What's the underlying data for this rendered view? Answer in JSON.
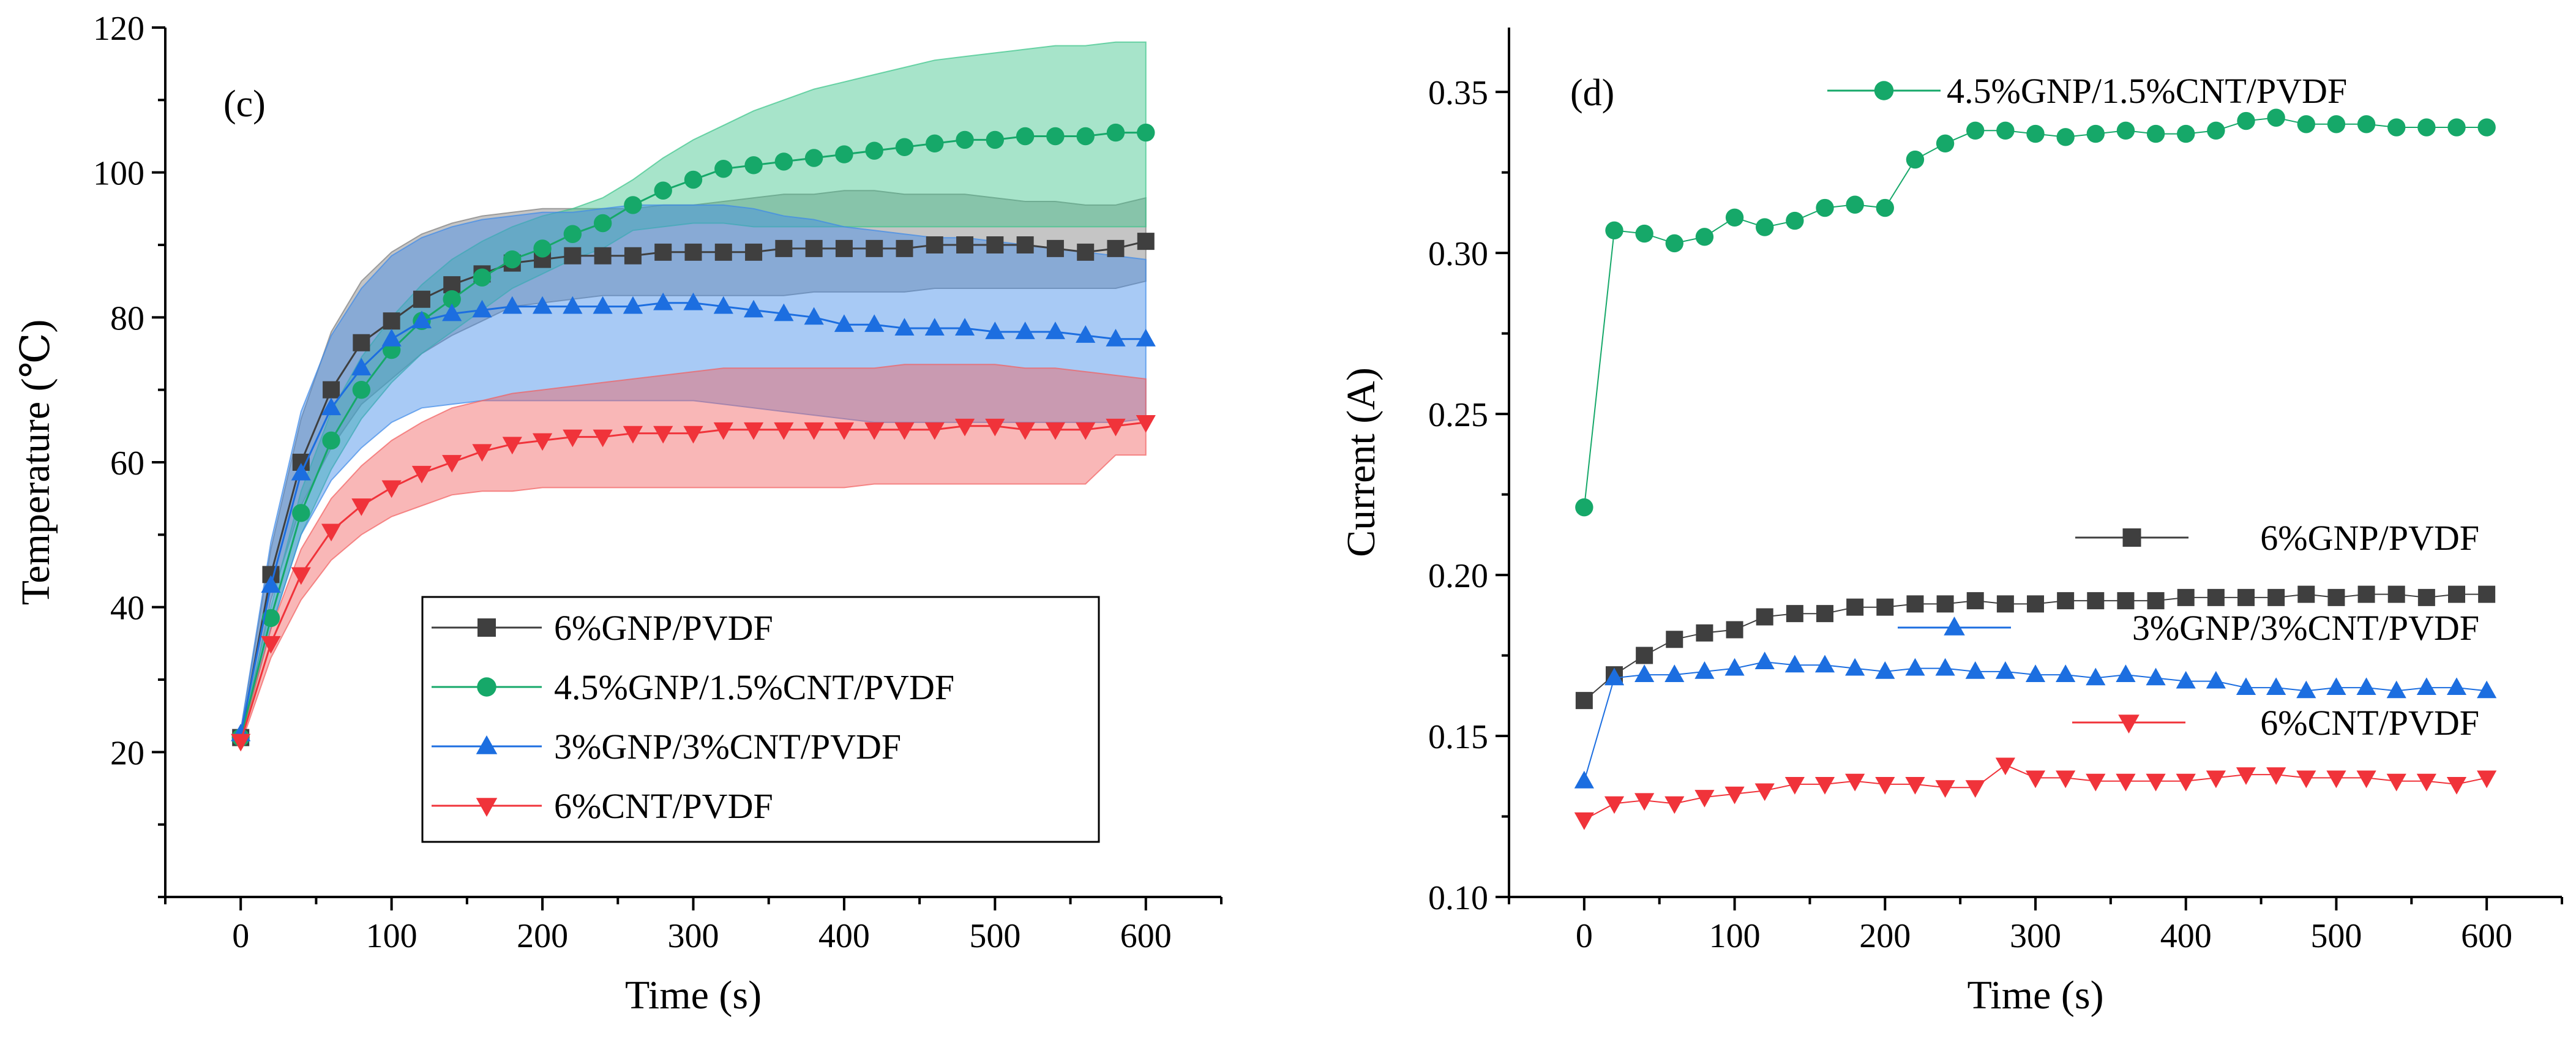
{
  "chart_data": [
    {
      "panel": "(c)",
      "type": "line",
      "xlabel": "Time (s)",
      "ylabel": "Temperature (℃)",
      "xlim": [
        -50,
        650
      ],
      "ylim": [
        0,
        120
      ],
      "xticks": [
        0,
        100,
        200,
        300,
        400,
        500,
        600
      ],
      "yticks": [
        20,
        40,
        60,
        80,
        100,
        120
      ],
      "legend_position": "bottom-center",
      "x": [
        0,
        20,
        40,
        60,
        80,
        100,
        120,
        140,
        160,
        180,
        200,
        220,
        240,
        260,
        280,
        300,
        320,
        340,
        360,
        380,
        400,
        420,
        440,
        460,
        480,
        500,
        520,
        540,
        560,
        580,
        600
      ],
      "series": [
        {
          "name": "6%GNP/PVDF",
          "color": "#3f3f3f",
          "band_color": "#7f7f7f",
          "marker": "square",
          "values": [
            22,
            44.5,
            60,
            70,
            76.5,
            79.5,
            82.5,
            84.5,
            86,
            87.5,
            88,
            88.5,
            88.5,
            88.5,
            89,
            89,
            89,
            89,
            89.5,
            89.5,
            89.5,
            89.5,
            89.5,
            90,
            90,
            90,
            90,
            89.5,
            89,
            89.5,
            90.5
          ],
          "band_upper": [
            23,
            48,
            66,
            78,
            85,
            89,
            91.5,
            93,
            94,
            94.5,
            95,
            95,
            95,
            95,
            95.5,
            95.5,
            96,
            96.5,
            97,
            97,
            97.5,
            97.5,
            97,
            97,
            97,
            96.5,
            96,
            96,
            95.5,
            95.5,
            96.5
          ],
          "band_lower": [
            21,
            41,
            54,
            62,
            68,
            71.5,
            75,
            77.5,
            79.5,
            81.5,
            82,
            82.5,
            83,
            83,
            83,
            83,
            83,
            83,
            83,
            83.5,
            83.5,
            83.5,
            83.5,
            84,
            84,
            84,
            84,
            84,
            84,
            84,
            85
          ]
        },
        {
          "name": "4.5%GNP/1.5%CNT/PVDF",
          "color": "#16a869",
          "band_color": "#3cc48a",
          "marker": "circle",
          "values": [
            22,
            38.5,
            53,
            63,
            70,
            75.5,
            79.5,
            82.5,
            85.5,
            88,
            89.5,
            91.5,
            93,
            95.5,
            97.5,
            99,
            100.5,
            101,
            101.5,
            102,
            102.5,
            103,
            103.5,
            104,
            104.5,
            104.5,
            105,
            105,
            105,
            105.5,
            105.5
          ],
          "band_upper": [
            22.5,
            40,
            56,
            67,
            74.5,
            80,
            84.5,
            88,
            90.5,
            92.5,
            94,
            95,
            96.5,
            99,
            102,
            104.5,
            106.5,
            108.5,
            110,
            111.5,
            112.5,
            113.5,
            114.5,
            115.5,
            116,
            116.5,
            117,
            117.5,
            117.5,
            118,
            118
          ],
          "band_lower": [
            21.5,
            37,
            50,
            59,
            66,
            71,
            75,
            78,
            81,
            84,
            86,
            88,
            89.5,
            92,
            92.5,
            93,
            93,
            92.5,
            92.5,
            92.5,
            92.5,
            92.5,
            92.5,
            92.5,
            92.5,
            92.5,
            92.5,
            92.5,
            92.5,
            92.5,
            92.5
          ]
        },
        {
          "name": "3%GNP/3%CNT/PVDF",
          "color": "#1c6ee0",
          "band_color": "#3f8ae8",
          "marker": "triangle-up",
          "values": [
            22.5,
            43,
            58.5,
            67.5,
            73,
            77,
            79.5,
            80.5,
            81,
            81.5,
            81.5,
            81.5,
            81.5,
            81.5,
            82,
            82,
            81.5,
            81,
            80.5,
            80,
            79,
            79,
            78.5,
            78.5,
            78.5,
            78,
            78,
            78,
            77.5,
            77,
            77
          ],
          "band_upper": [
            23,
            49,
            67,
            77.5,
            84,
            88.5,
            91,
            92.5,
            93.5,
            94,
            94.5,
            94.5,
            95,
            95.5,
            95.5,
            95.5,
            95.5,
            95,
            94,
            93.5,
            92.5,
            92,
            91.5,
            91,
            91,
            90.5,
            90,
            89.5,
            89,
            88.5,
            88
          ],
          "band_lower": [
            22,
            37,
            50,
            57.5,
            62,
            65.5,
            67.5,
            68,
            68.5,
            68.5,
            68.5,
            68.5,
            68.5,
            68.5,
            68.5,
            68.5,
            68,
            67.5,
            67,
            66.5,
            66,
            65.5,
            65.5,
            65.5,
            65.5,
            65.5,
            65.5,
            65.5,
            65.5,
            65.5,
            66
          ]
        },
        {
          "name": "6%CNT/PVDF",
          "color": "#f0333a",
          "band_color": "#f26060",
          "marker": "triangle-down",
          "values": [
            21.5,
            35,
            44.5,
            50.5,
            54,
            56.5,
            58.5,
            60,
            61.5,
            62.5,
            63,
            63.5,
            63.5,
            64,
            64,
            64,
            64.5,
            64.5,
            64.5,
            64.5,
            64.5,
            64.5,
            64.5,
            64.5,
            65,
            65,
            64.5,
            64.5,
            64.5,
            65,
            65.5
          ],
          "band_upper": [
            22,
            37,
            48,
            55,
            59.5,
            63,
            65.5,
            67.5,
            68.5,
            69.5,
            70,
            70.5,
            71,
            71.5,
            72,
            72.5,
            73,
            73,
            73,
            73,
            73,
            73,
            73.5,
            73.5,
            73.5,
            73.5,
            73,
            73,
            72.5,
            72,
            71.5
          ],
          "band_lower": [
            21,
            33,
            41,
            46.5,
            50,
            52.5,
            54,
            55.5,
            56,
            56,
            56.5,
            56.5,
            56.5,
            56.5,
            56.5,
            56.5,
            56.5,
            56.5,
            56.5,
            56.5,
            56.5,
            57,
            57,
            57,
            57,
            57,
            57,
            57,
            57,
            61,
            61
          ]
        }
      ]
    },
    {
      "panel": "(d)",
      "type": "line",
      "xlabel": "Time (s)",
      "ylabel": "Current (A)",
      "xlim": [
        -50,
        650
      ],
      "ylim": [
        0.1,
        0.37
      ],
      "xticks": [
        0,
        100,
        200,
        300,
        400,
        500,
        600
      ],
      "yticks": [
        0.1,
        0.15,
        0.2,
        0.25,
        0.3,
        0.35
      ],
      "legend_position": "inline",
      "x": [
        0,
        20,
        40,
        60,
        80,
        100,
        120,
        140,
        160,
        180,
        200,
        220,
        240,
        260,
        280,
        300,
        320,
        340,
        360,
        380,
        400,
        420,
        440,
        460,
        480,
        500,
        520,
        540,
        560,
        580,
        600
      ],
      "series": [
        {
          "name": "4.5%GNP/1.5%CNT/PVDF",
          "color": "#16a869",
          "marker": "circle",
          "values": [
            0.221,
            0.307,
            0.306,
            0.303,
            0.305,
            0.311,
            0.308,
            0.31,
            0.314,
            0.315,
            0.314,
            0.329,
            0.334,
            0.338,
            0.338,
            0.337,
            0.336,
            0.337,
            0.338,
            0.337,
            0.337,
            0.338,
            0.341,
            0.342,
            0.34,
            0.34,
            0.34,
            0.339,
            0.339,
            0.339,
            0.339
          ]
        },
        {
          "name": "6%GNP/PVDF",
          "color": "#3f3f3f",
          "marker": "square",
          "values": [
            0.161,
            0.169,
            0.175,
            0.18,
            0.182,
            0.183,
            0.187,
            0.188,
            0.188,
            0.19,
            0.19,
            0.191,
            0.191,
            0.192,
            0.191,
            0.191,
            0.192,
            0.192,
            0.192,
            0.192,
            0.193,
            0.193,
            0.193,
            0.193,
            0.194,
            0.193,
            0.194,
            0.194,
            0.193,
            0.194,
            0.194
          ]
        },
        {
          "name": "3%GNP/3%CNT/PVDF",
          "color": "#1c6ee0",
          "marker": "triangle-up",
          "values": [
            0.136,
            0.168,
            0.169,
            0.169,
            0.17,
            0.171,
            0.173,
            0.172,
            0.172,
            0.171,
            0.17,
            0.171,
            0.171,
            0.17,
            0.17,
            0.169,
            0.169,
            0.168,
            0.169,
            0.168,
            0.167,
            0.167,
            0.165,
            0.165,
            0.164,
            0.165,
            0.165,
            0.164,
            0.165,
            0.165,
            0.164
          ]
        },
        {
          "name": "6%CNT/PVDF",
          "color": "#f0333a",
          "marker": "triangle-down",
          "values": [
            0.124,
            0.129,
            0.13,
            0.129,
            0.131,
            0.132,
            0.133,
            0.135,
            0.135,
            0.136,
            0.135,
            0.135,
            0.134,
            0.134,
            0.141,
            0.137,
            0.137,
            0.136,
            0.136,
            0.136,
            0.136,
            0.137,
            0.138,
            0.138,
            0.137,
            0.137,
            0.137,
            0.136,
            0.136,
            0.135,
            0.137
          ]
        }
      ]
    }
  ]
}
